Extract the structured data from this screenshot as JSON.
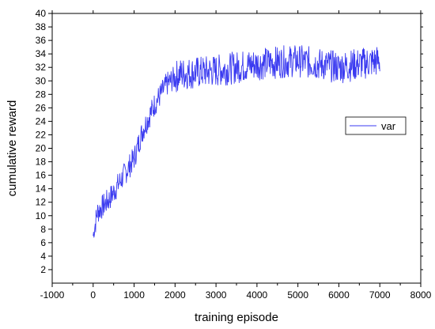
{
  "chart_data": {
    "type": "line",
    "title": "",
    "xlabel": "training episode",
    "ylabel": "cumulative reward",
    "xlim": [
      -1000,
      8000
    ],
    "ylim": [
      0,
      40
    ],
    "x_ticks": [
      "-1000",
      "0",
      "1000",
      "2000",
      "3000",
      "4000",
      "5000",
      "6000",
      "7000",
      "8000"
    ],
    "y_ticks": [
      "2",
      "4",
      "6",
      "8",
      "10",
      "12",
      "14",
      "16",
      "18",
      "20",
      "22",
      "24",
      "26",
      "28",
      "30",
      "32",
      "34",
      "36",
      "38",
      "40"
    ],
    "grid": false,
    "legend_position": "right",
    "series": [
      {
        "name": "var",
        "color": "#3b3bf0",
        "trend": [
          [
            0,
            7.0
          ],
          [
            100,
            10.5
          ],
          [
            400,
            12.5
          ],
          [
            800,
            16.5
          ],
          [
            1000,
            18.5
          ],
          [
            1200,
            22.5
          ],
          [
            1500,
            26.5
          ],
          [
            1800,
            29.5
          ],
          [
            2100,
            31.0
          ],
          [
            3000,
            31.5
          ],
          [
            4000,
            32.5
          ],
          [
            5000,
            33.0
          ],
          [
            6000,
            32.0
          ],
          [
            7000,
            33.0
          ]
        ],
        "range": [
          6.8,
          36.0
        ],
        "n_points": 700
      }
    ]
  }
}
